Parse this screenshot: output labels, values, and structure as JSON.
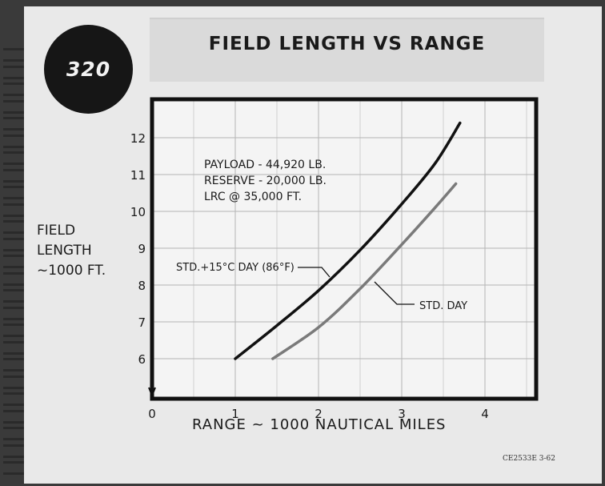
{
  "logo_text": "320",
  "reference_code": "CE2533E 3-62",
  "chart_data": {
    "type": "line",
    "title": "FIELD LENGTH VS RANGE",
    "ylabel_lines": [
      "FIELD",
      "LENGTH",
      "~1000 FT."
    ],
    "xlabel": "RANGE ~ 1000 NAUTICAL MILES",
    "xlim": [
      0,
      4.6
    ],
    "ylim": [
      5,
      13.2
    ],
    "xticks": [
      "0",
      "1",
      "2",
      "3",
      "4"
    ],
    "yticks": [
      "6",
      "7",
      "8",
      "9",
      "10",
      "11",
      "12"
    ],
    "grid": true,
    "annotation_lines": [
      "PAYLOAD - 44,920 LB.",
      "RESERVE - 20,000 LB.",
      "LRC @ 35,000 FT."
    ],
    "series": [
      {
        "name": "STD.+15°C DAY (86°F)",
        "color": "#111111",
        "x": [
          1.0,
          1.5,
          2.0,
          2.5,
          3.0,
          3.4,
          3.7
        ],
        "y": [
          6.0,
          6.9,
          7.85,
          8.95,
          10.2,
          11.3,
          12.4
        ]
      },
      {
        "name": "STD. DAY",
        "color": "#7a7a7a",
        "x": [
          1.45,
          2.0,
          2.5,
          3.0,
          3.4,
          3.65
        ],
        "y": [
          6.0,
          6.85,
          7.9,
          9.1,
          10.1,
          10.75
        ]
      }
    ]
  }
}
